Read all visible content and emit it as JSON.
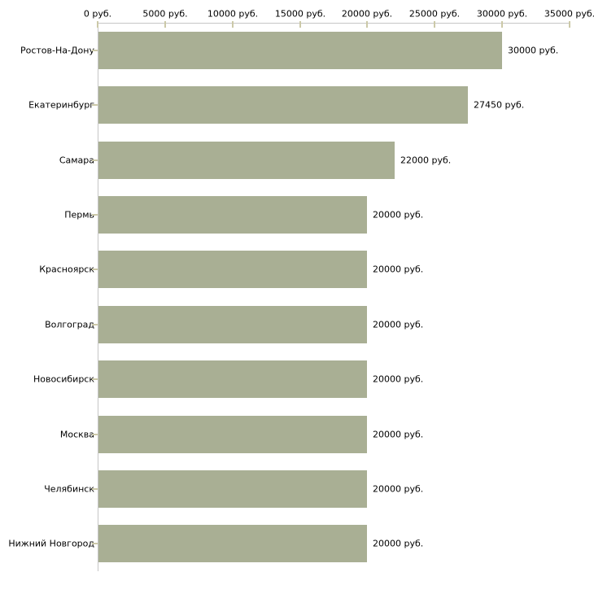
{
  "chart_data": {
    "type": "bar",
    "orientation": "horizontal",
    "title": "",
    "xlabel": "",
    "ylabel": "",
    "unit": "руб.",
    "categories": [
      "Ростов-На-Дону",
      "Екатеринбург",
      "Самара",
      "Пермь",
      "Красноярск",
      "Волгоград",
      "Новосибирск",
      "Москва",
      "Челябинск",
      "Нижний Новгород"
    ],
    "values": [
      30000,
      27450,
      22000,
      20000,
      20000,
      20000,
      20000,
      20000,
      20000,
      20000
    ],
    "value_labels": [
      "30000 руб.",
      "27450 руб.",
      "22000 руб.",
      "20000 руб.",
      "20000 руб.",
      "20000 руб.",
      "20000 руб.",
      "20000 руб.",
      "20000 руб.",
      "20000 руб."
    ],
    "xlim": [
      0,
      35000
    ],
    "x_tick_values": [
      0,
      5000,
      10000,
      15000,
      20000,
      25000,
      30000,
      35000
    ],
    "x_tick_labels": [
      "0 руб.",
      "5000 руб.",
      "10000 руб.",
      "15000 руб.",
      "20000 руб.",
      "25000 руб.",
      "30000 руб.",
      "35000 руб."
    ],
    "x_axis_position": "top",
    "grid": "off",
    "legend": "none",
    "colors": {
      "bar": "#a9af94",
      "axis_line": "#c6c6c6",
      "tick_mark": "#ccc9a8",
      "text": "#000000",
      "background": "#ffffff"
    }
  }
}
